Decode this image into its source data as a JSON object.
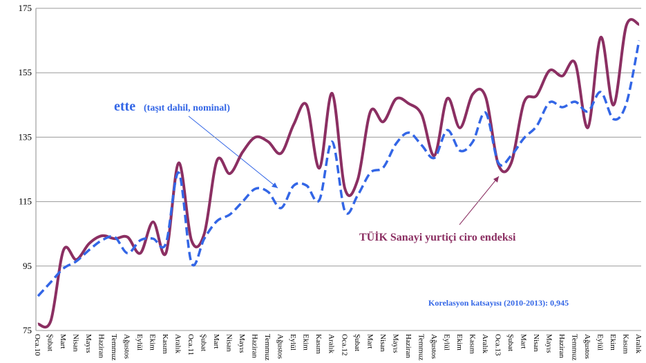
{
  "chart_data": {
    "type": "line",
    "categories": [
      "Oca.10",
      "Şubat",
      "Mart",
      "Nisan",
      "Mayıs",
      "Haziran",
      "Temmuz",
      "Ağustos",
      "Eylül",
      "Ekim",
      "Kasım",
      "Aralık",
      "Oca.11",
      "Şubat",
      "Mart",
      "Nisan",
      "Mayıs",
      "Haziran",
      "Temmuz",
      "Ağustos",
      "Eylül",
      "Ekim",
      "Kasım",
      "Aralık",
      "Oca.12",
      "Şubat",
      "Mart",
      "Nisan",
      "Mayıs",
      "Haziran",
      "Temmuz",
      "Ağustos",
      "Eylül",
      "Ekim",
      "Kasım",
      "Aralık",
      "Oca.13",
      "Şubat",
      "Mart",
      "Nisan",
      "Mayıs",
      "Haziran",
      "Temmuz",
      "Ağustos",
      "Eylül",
      "Ekim",
      "Kasım",
      "Aralık"
    ],
    "series": [
      {
        "name": "TÜİK Sanayi yurtiçi ciro endeksi",
        "color": "#8b2f62",
        "dashed": false,
        "values": [
          77,
          78,
          100,
          97,
          102,
          104.4,
          103.5,
          104,
          99,
          108.7,
          99,
          127,
          103,
          105,
          127.8,
          123.7,
          130.4,
          135,
          133.6,
          130,
          139,
          145,
          125.4,
          148.6,
          119,
          121.8,
          143,
          139.8,
          146.9,
          145.4,
          142,
          129.3,
          147,
          137.9,
          148.4,
          147.5,
          126.5,
          127,
          145.8,
          148,
          155.7,
          154,
          158,
          138,
          166,
          145,
          169.6,
          170
        ]
      },
      {
        "name": "ette",
        "color": "#3366e6",
        "dashed": true,
        "values": [
          85.7,
          90,
          94.3,
          96.5,
          100,
          103,
          104,
          99,
          103,
          103.5,
          102,
          124,
          96,
          103.5,
          109,
          111,
          115,
          119,
          118,
          113,
          120,
          120,
          115.5,
          133.6,
          112,
          117,
          124,
          125.6,
          133,
          136.4,
          132.5,
          128.6,
          137.2,
          130.8,
          133.6,
          142.6,
          127,
          129.3,
          134.7,
          138.5,
          145.8,
          144.3,
          146,
          143,
          149,
          140.6,
          145.4,
          165
        ]
      }
    ],
    "annotations": [
      "(taşıt dahil, nominal)",
      "Korelasyon katsayısı (2010-2013): 0,945"
    ],
    "ylim": [
      75,
      175
    ],
    "yticks": [
      75,
      95,
      115,
      135,
      155,
      175
    ],
    "grid": true
  }
}
